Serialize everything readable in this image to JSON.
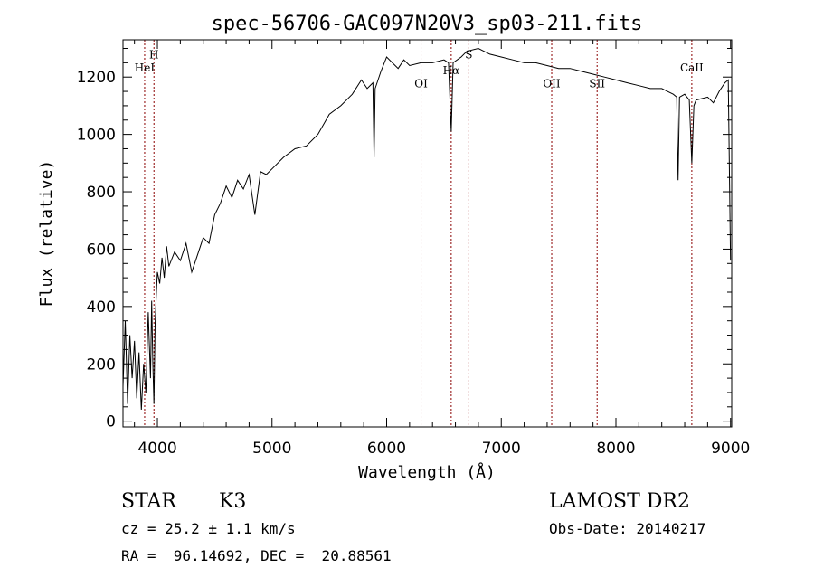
{
  "chart_data": {
    "type": "line",
    "title": "spec-56706-GAC097N20V3_sp03-211.fits",
    "xlabel": "Wavelength (Å)",
    "ylabel": "Flux (relative)",
    "xlim": [
      3700,
      9010
    ],
    "ylim": [
      -20,
      1330
    ],
    "xticks": [
      4000,
      5000,
      6000,
      7000,
      8000,
      9000
    ],
    "yticks": [
      0,
      200,
      400,
      600,
      800,
      1000,
      1200
    ],
    "grid": false,
    "line_color": "#000000",
    "marker_color": "#8b0000",
    "series": [
      {
        "points": [
          [
            3700,
            120
          ],
          [
            3720,
            350
          ],
          [
            3740,
            60
          ],
          [
            3760,
            300
          ],
          [
            3780,
            150
          ],
          [
            3800,
            280
          ],
          [
            3820,
            80
          ],
          [
            3840,
            240
          ],
          [
            3860,
            40
          ],
          [
            3880,
            200
          ],
          [
            3900,
            100
          ],
          [
            3920,
            380
          ],
          [
            3940,
            150
          ],
          [
            3950,
            420
          ],
          [
            3960,
            200
          ],
          [
            3970,
            60
          ],
          [
            3980,
            340
          ],
          [
            3990,
            440
          ],
          [
            4000,
            520
          ],
          [
            4020,
            480
          ],
          [
            4040,
            570
          ],
          [
            4060,
            500
          ],
          [
            4080,
            610
          ],
          [
            4100,
            540
          ],
          [
            4150,
            590
          ],
          [
            4200,
            560
          ],
          [
            4250,
            620
          ],
          [
            4300,
            520
          ],
          [
            4350,
            580
          ],
          [
            4400,
            640
          ],
          [
            4450,
            620
          ],
          [
            4500,
            720
          ],
          [
            4550,
            760
          ],
          [
            4600,
            820
          ],
          [
            4650,
            780
          ],
          [
            4700,
            840
          ],
          [
            4750,
            810
          ],
          [
            4800,
            860
          ],
          [
            4850,
            720
          ],
          [
            4900,
            870
          ],
          [
            4950,
            860
          ],
          [
            5000,
            880
          ],
          [
            5100,
            920
          ],
          [
            5200,
            950
          ],
          [
            5300,
            960
          ],
          [
            5400,
            1000
          ],
          [
            5500,
            1070
          ],
          [
            5600,
            1100
          ],
          [
            5700,
            1140
          ],
          [
            5780,
            1190
          ],
          [
            5830,
            1160
          ],
          [
            5880,
            1180
          ],
          [
            5890,
            920
          ],
          [
            5900,
            1160
          ],
          [
            5950,
            1220
          ],
          [
            6000,
            1270
          ],
          [
            6050,
            1250
          ],
          [
            6100,
            1230
          ],
          [
            6150,
            1260
          ],
          [
            6200,
            1240
          ],
          [
            6300,
            1250
          ],
          [
            6400,
            1250
          ],
          [
            6500,
            1260
          ],
          [
            6540,
            1250
          ],
          [
            6563,
            1010
          ],
          [
            6580,
            1250
          ],
          [
            6650,
            1270
          ],
          [
            6700,
            1290
          ],
          [
            6800,
            1300
          ],
          [
            6900,
            1280
          ],
          [
            7000,
            1270
          ],
          [
            7100,
            1260
          ],
          [
            7200,
            1250
          ],
          [
            7300,
            1250
          ],
          [
            7400,
            1240
          ],
          [
            7500,
            1230
          ],
          [
            7600,
            1230
          ],
          [
            7700,
            1220
          ],
          [
            7800,
            1210
          ],
          [
            7900,
            1200
          ],
          [
            8000,
            1190
          ],
          [
            8100,
            1180
          ],
          [
            8200,
            1170
          ],
          [
            8300,
            1160
          ],
          [
            8400,
            1160
          ],
          [
            8450,
            1150
          ],
          [
            8500,
            1140
          ],
          [
            8530,
            1130
          ],
          [
            8542,
            840
          ],
          [
            8555,
            1130
          ],
          [
            8600,
            1140
          ],
          [
            8640,
            1120
          ],
          [
            8662,
            900
          ],
          [
            8680,
            1100
          ],
          [
            8700,
            1120
          ],
          [
            8800,
            1130
          ],
          [
            8850,
            1110
          ],
          [
            8900,
            1150
          ],
          [
            8950,
            1180
          ],
          [
            8980,
            1190
          ],
          [
            9000,
            560
          ]
        ]
      }
    ],
    "line_markers": [
      {
        "wavelength": 3889,
        "label": "HeI",
        "label_y": 1220
      },
      {
        "wavelength": 3970,
        "label": "H",
        "label_y": 1265
      },
      {
        "wavelength": 6300,
        "label": "OI",
        "label_y": 1165
      },
      {
        "wavelength": 6563,
        "label": "Hα",
        "label_y": 1210
      },
      {
        "wavelength": 6717,
        "label": "S",
        "label_y": 1265
      },
      {
        "wavelength": 7440,
        "label": "OII",
        "label_y": 1165
      },
      {
        "wavelength": 7836,
        "label": "SII",
        "label_y": 1165
      },
      {
        "wavelength": 8662,
        "label": "CaII",
        "label_y": 1220
      }
    ]
  },
  "info": {
    "object_class": "STAR",
    "subclass": "K3",
    "cz": "cz = 25.2 ± 1.1 km/s",
    "coords": "RA =  96.14692, DEC =  20.88561",
    "survey": "LAMOST DR2",
    "obs_date": "Obs-Date: 20140217"
  }
}
